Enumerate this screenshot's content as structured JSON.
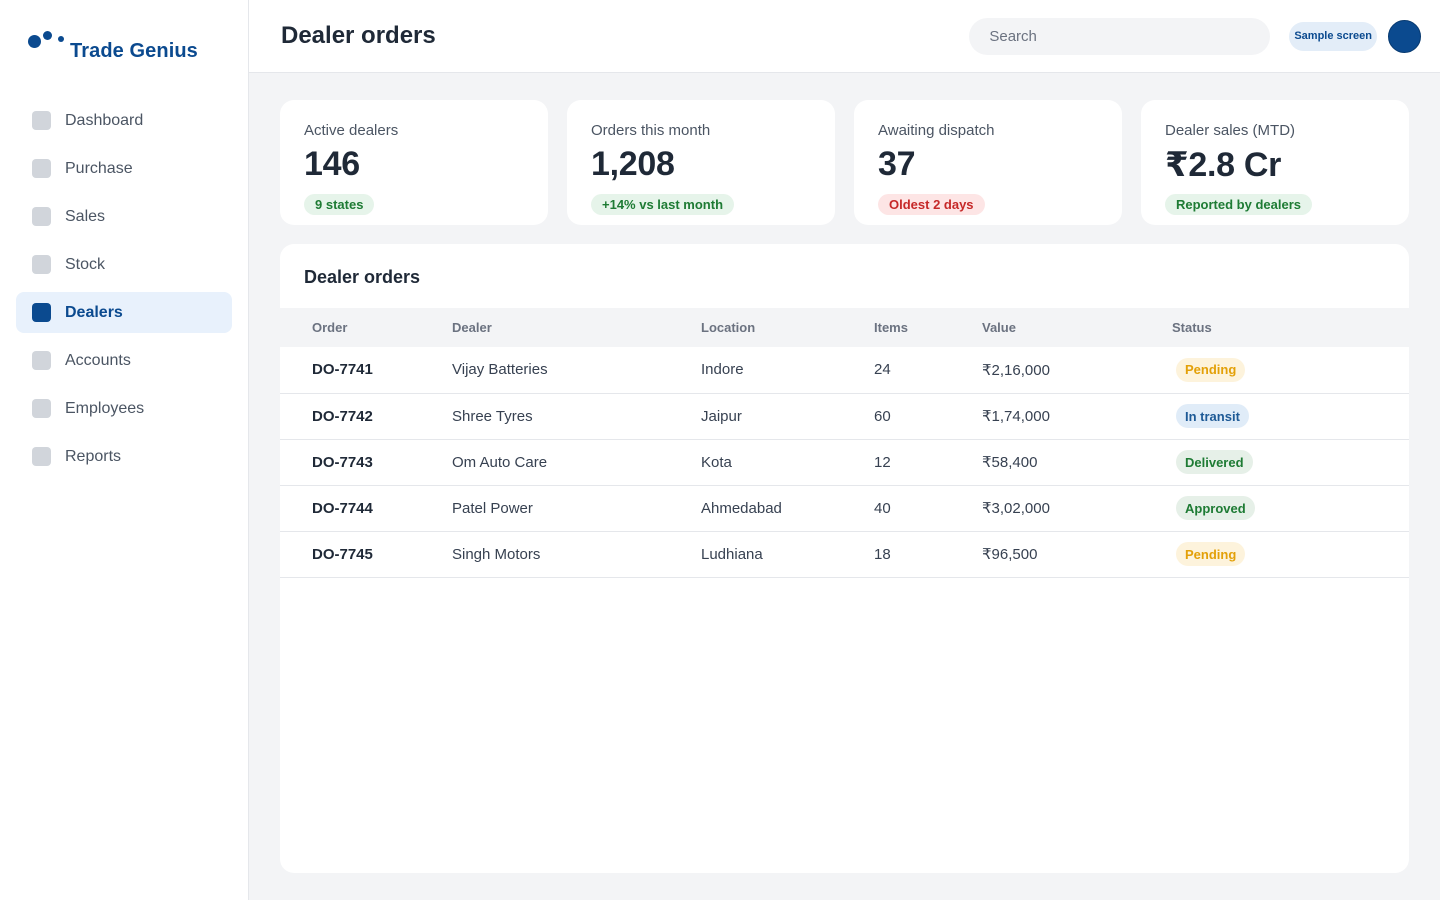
{
  "brand": {
    "name": "Trade Genius"
  },
  "sidebar": {
    "items": [
      {
        "label": "Dashboard",
        "icon": "square-icon",
        "active": false
      },
      {
        "label": "Purchase",
        "icon": "square-icon",
        "active": false
      },
      {
        "label": "Sales",
        "icon": "square-icon",
        "active": false
      },
      {
        "label": "Stock",
        "icon": "square-icon",
        "active": false
      },
      {
        "label": "Dealers",
        "icon": "square-icon",
        "active": true
      },
      {
        "label": "Accounts",
        "icon": "square-icon",
        "active": false
      },
      {
        "label": "Employees",
        "icon": "square-icon",
        "active": false
      },
      {
        "label": "Reports",
        "icon": "square-icon",
        "active": false
      }
    ]
  },
  "header": {
    "title": "Dealer orders",
    "search_placeholder": "Search",
    "badge": "Sample screen"
  },
  "stats": [
    {
      "label": "Active dealers",
      "value": "146",
      "chip": "9 states",
      "chip_tone": "green"
    },
    {
      "label": "Orders this month",
      "value": "1,208",
      "chip": "+14% vs last month",
      "chip_tone": "green"
    },
    {
      "label": "Awaiting dispatch",
      "value": "37",
      "chip": "Oldest 2 days",
      "chip_tone": "red"
    },
    {
      "label": "Dealer sales (MTD)",
      "value": "₹2.8 Cr",
      "chip": "Reported by dealers",
      "chip_tone": "green"
    }
  ],
  "orders": {
    "title": "Dealer orders",
    "columns": [
      "Order",
      "Dealer",
      "Location",
      "Items",
      "Value",
      "Status"
    ],
    "rows": [
      {
        "order": "DO-7741",
        "dealer": "Vijay Batteries",
        "location": "Indore",
        "items": "24",
        "value": "₹2,16,000",
        "status": "Pending",
        "status_tone": "pending"
      },
      {
        "order": "DO-7742",
        "dealer": "Shree Tyres",
        "location": "Jaipur",
        "items": "60",
        "value": "₹1,74,000",
        "status": "In transit",
        "status_tone": "transit"
      },
      {
        "order": "DO-7743",
        "dealer": "Om Auto Care",
        "location": "Kota",
        "items": "12",
        "value": "₹58,400",
        "status": "Delivered",
        "status_tone": "delivered"
      },
      {
        "order": "DO-7744",
        "dealer": "Patel Power",
        "location": "Ahmedabad",
        "items": "40",
        "value": "₹3,02,000",
        "status": "Approved",
        "status_tone": "approved"
      },
      {
        "order": "DO-7745",
        "dealer": "Singh Motors",
        "location": "Ludhiana",
        "items": "18",
        "value": "₹96,500",
        "status": "Pending",
        "status_tone": "pending"
      }
    ]
  },
  "colors": {
    "brand": "#0b4a8f",
    "active_bg": "#e8f1fc",
    "pending": "#e3a008",
    "transit": "#1e5a96",
    "success": "#1e7b34",
    "alert": "#c62828"
  }
}
